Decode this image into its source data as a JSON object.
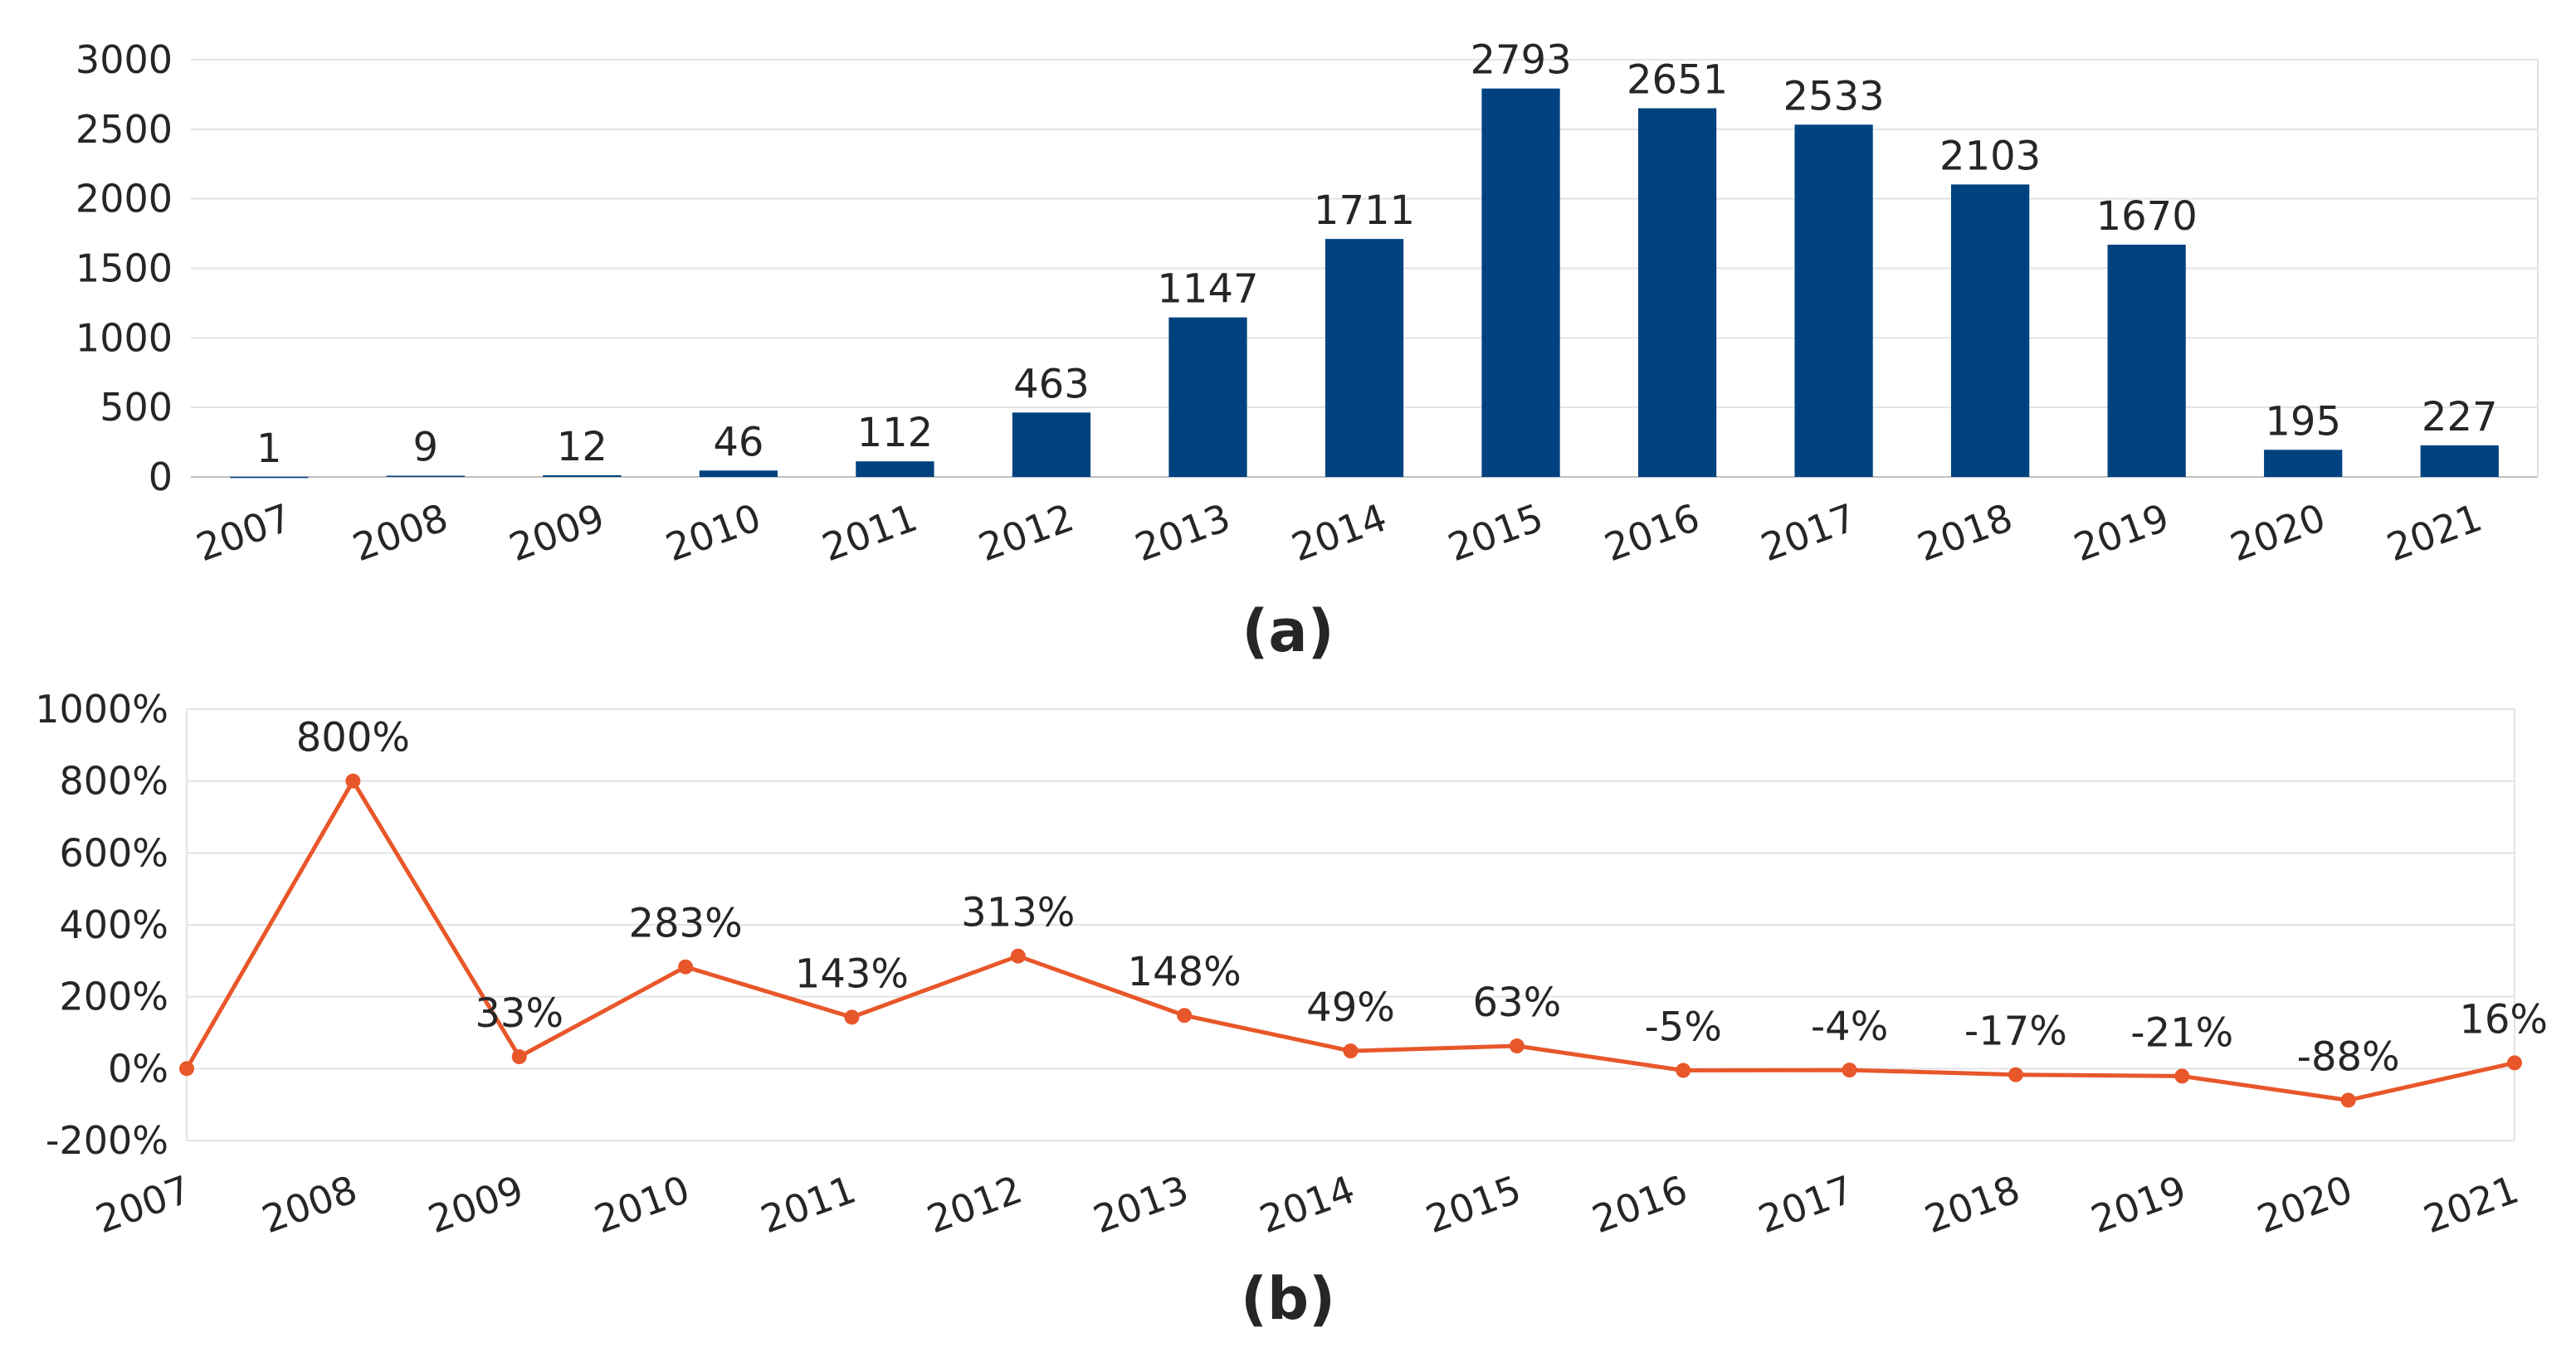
{
  "chart_data": [
    {
      "type": "bar",
      "panel_label": "(a)",
      "categories": [
        "2007",
        "2008",
        "2009",
        "2010",
        "2011",
        "2012",
        "2013",
        "2014",
        "2015",
        "2016",
        "2017",
        "2018",
        "2019",
        "2020",
        "2021"
      ],
      "values": [
        1,
        9,
        12,
        46,
        112,
        463,
        1147,
        1711,
        2793,
        2651,
        2533,
        2103,
        1670,
        195,
        227
      ],
      "data_labels": [
        "1",
        "9",
        "12",
        "46",
        "112",
        "463",
        "1147",
        "1711",
        "2793",
        "2651",
        "2533",
        "2103",
        "1670",
        "195",
        "227"
      ],
      "ylim": [
        0,
        3000
      ],
      "yticks": [
        0,
        500,
        1000,
        1500,
        2000,
        2500,
        3000
      ],
      "ytick_labels": [
        "0",
        "500",
        "1000",
        "1500",
        "2000",
        "2500",
        "3000"
      ],
      "grid": true,
      "color": "#00427F",
      "title": "",
      "xlabel": "",
      "ylabel": ""
    },
    {
      "type": "line",
      "panel_label": "(b)",
      "categories": [
        "2007",
        "2008",
        "2009",
        "2010",
        "2011",
        "2012",
        "2013",
        "2014",
        "2015",
        "2016",
        "2017",
        "2018",
        "2019",
        "2020",
        "2021"
      ],
      "values": [
        0,
        800,
        33,
        283,
        143,
        313,
        148,
        49,
        63,
        -5,
        -4,
        -17,
        -21,
        -88,
        16
      ],
      "data_labels": [
        null,
        "800%",
        "33%",
        "283%",
        "143%",
        "313%",
        "148%",
        "49%",
        "63%",
        "-5%",
        "-4%",
        "-17%",
        "-21%",
        "-88%",
        "16%"
      ],
      "ylim": [
        -200,
        1000
      ],
      "yticks": [
        -200,
        0,
        200,
        400,
        600,
        800,
        1000
      ],
      "ytick_labels": [
        "-200%",
        "0%",
        "200%",
        "400%",
        "600%",
        "800%",
        "1000%"
      ],
      "grid": true,
      "color": "#E8572A",
      "title": "",
      "xlabel": "",
      "ylabel": ""
    }
  ]
}
